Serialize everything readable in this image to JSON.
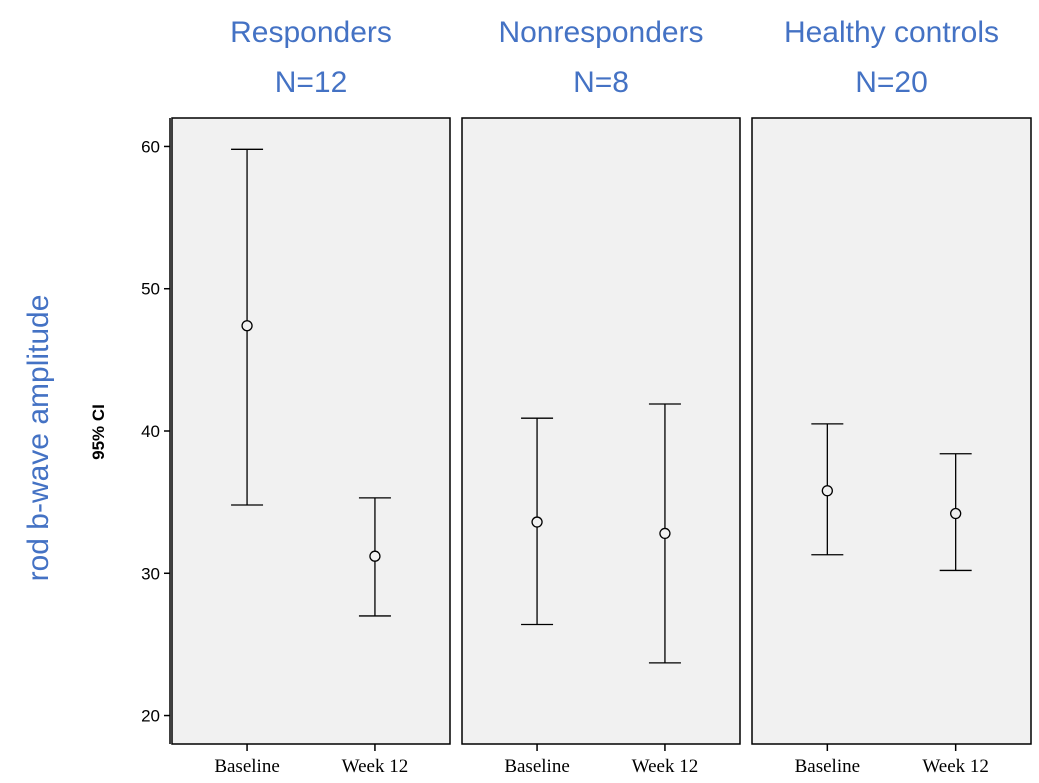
{
  "colors": {
    "annotation": "#4472c4",
    "panel_fill": "#f1f1f1",
    "ink": "#000000"
  },
  "ylabel": "rod b-wave amplitude",
  "chart_data": {
    "type": "errorbar",
    "ylabel": "95% CI",
    "ylim": [
      18,
      62
    ],
    "yticks": [
      20,
      30,
      40,
      50,
      60
    ],
    "grid": false,
    "categories": [
      "Baseline",
      "Week 12"
    ],
    "panels": [
      {
        "title": "Responders",
        "n_label": "N=12",
        "points": [
          {
            "category": "Baseline",
            "mean": 47.4,
            "lower": 34.8,
            "upper": 59.8
          },
          {
            "category": "Week 12",
            "mean": 31.2,
            "lower": 27.0,
            "upper": 35.3
          }
        ]
      },
      {
        "title": "Nonresponders",
        "n_label": "N=8",
        "points": [
          {
            "category": "Baseline",
            "mean": 33.6,
            "lower": 26.4,
            "upper": 40.9
          },
          {
            "category": "Week 12",
            "mean": 32.8,
            "lower": 23.7,
            "upper": 41.9
          }
        ]
      },
      {
        "title": "Healthy controls",
        "n_label": "N=20",
        "points": [
          {
            "category": "Baseline",
            "mean": 35.8,
            "lower": 31.3,
            "upper": 40.5
          },
          {
            "category": "Week 12",
            "mean": 34.2,
            "lower": 30.2,
            "upper": 38.4
          }
        ]
      }
    ]
  }
}
